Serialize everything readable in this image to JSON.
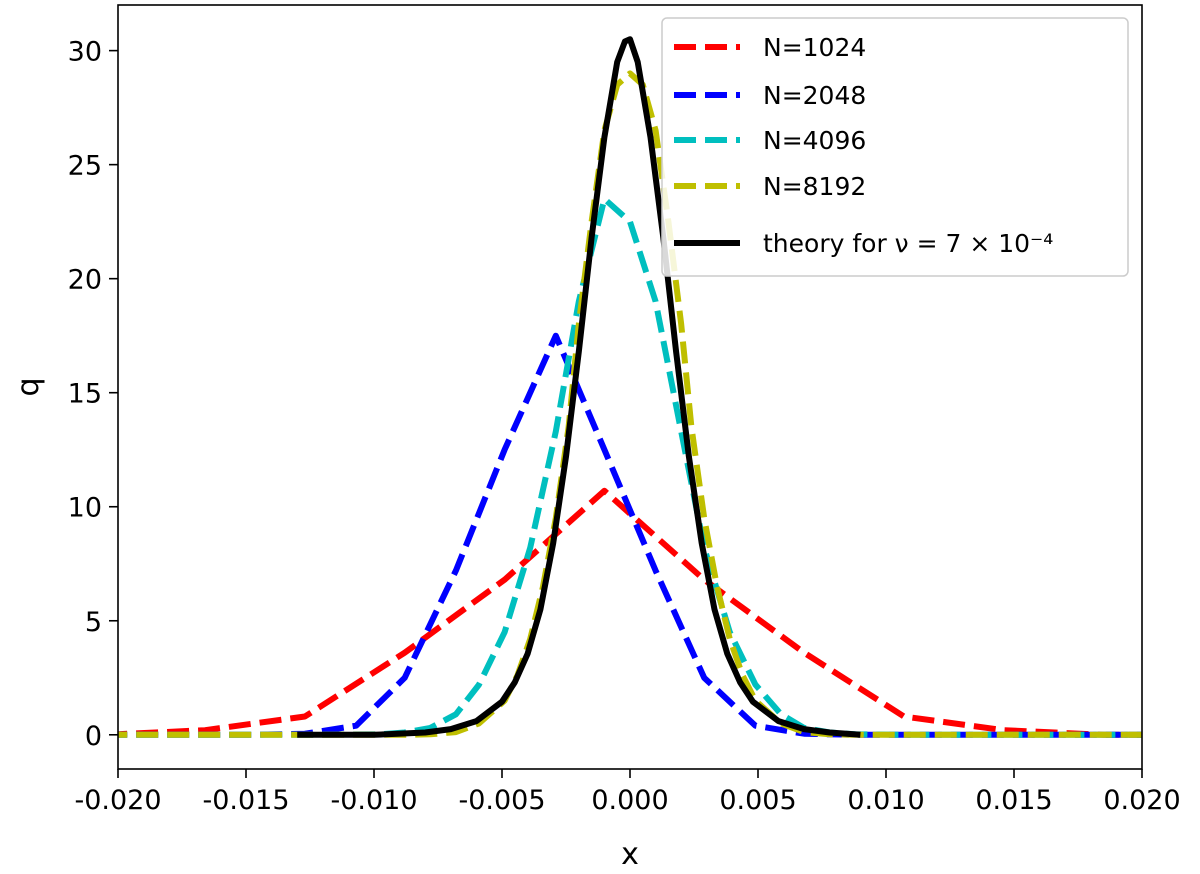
{
  "chart_data": {
    "type": "line",
    "title": "",
    "xlabel": "x",
    "ylabel": "q",
    "xlim": [
      -0.02,
      0.02
    ],
    "ylim": [
      -1.5,
      32
    ],
    "xticks": [
      -0.02,
      -0.015,
      -0.01,
      -0.005,
      0.0,
      0.005,
      0.01,
      0.015,
      0.02
    ],
    "xtick_labels": [
      "-0.020",
      "-0.015",
      "-0.010",
      "-0.005",
      "0.000",
      "0.005",
      "0.010",
      "0.015",
      "0.020"
    ],
    "yticks": [
      0,
      5,
      10,
      15,
      20,
      25,
      30
    ],
    "ytick_labels": [
      "0",
      "5",
      "10",
      "15",
      "20",
      "25",
      "30"
    ],
    "grid": false,
    "legend_position": "top-right",
    "series": [
      {
        "name": "N=1024",
        "color": "#ff0000",
        "style": "dashed",
        "x": [
          -0.0205,
          -0.0166,
          -0.0127,
          -0.0088,
          -0.0049,
          -0.001,
          0.0029,
          0.0068,
          0.0107,
          0.0146,
          0.0185,
          0.0205
        ],
        "y": [
          0.0,
          0.2,
          0.8,
          3.6,
          6.8,
          10.7,
          6.8,
          3.6,
          0.8,
          0.2,
          0.0,
          0.0
        ]
      },
      {
        "name": "N=2048",
        "color": "#0000ff",
        "style": "dashed",
        "x": [
          -0.0205,
          -0.0186,
          -0.0166,
          -0.0147,
          -0.0127,
          -0.0107,
          -0.0088,
          -0.0068,
          -0.0049,
          -0.0029,
          -0.001,
          0.001,
          0.0029,
          0.0049,
          0.0068,
          0.0088,
          0.0107,
          0.0127,
          0.0147,
          0.0166,
          0.0186,
          0.0205
        ],
        "y": [
          0.0,
          0.0,
          0.0,
          0.0,
          0.05,
          0.4,
          2.5,
          7.2,
          12.5,
          17.5,
          12.5,
          7.2,
          2.5,
          0.4,
          0.05,
          0.0,
          0.0,
          0.0,
          0.0,
          0.0,
          0.0,
          0.0
        ]
      },
      {
        "name": "N=4096",
        "color": "#00bfbf",
        "style": "dashed",
        "x": [
          -0.0205,
          -0.0166,
          -0.0127,
          -0.0098,
          -0.0088,
          -0.0078,
          -0.0068,
          -0.0059,
          -0.0049,
          -0.0039,
          -0.0029,
          -0.002,
          -0.001,
          0.0,
          0.001,
          0.002,
          0.0029,
          0.0039,
          0.0049,
          0.0059,
          0.0068,
          0.0078,
          0.0088,
          0.0107,
          0.0146,
          0.0205
        ],
        "y": [
          0.0,
          0.0,
          0.0,
          0.02,
          0.1,
          0.3,
          0.9,
          2.2,
          4.5,
          8.2,
          13.3,
          19.0,
          23.5,
          22.5,
          19.0,
          13.3,
          8.2,
          4.5,
          2.2,
          0.9,
          0.3,
          0.1,
          0.02,
          0.0,
          0.0,
          0.0
        ]
      },
      {
        "name": "N=8192",
        "color": "#bfbf00",
        "style": "dashed",
        "x": [
          -0.0205,
          -0.0127,
          -0.0088,
          -0.0078,
          -0.0068,
          -0.0059,
          -0.0049,
          -0.0044,
          -0.0039,
          -0.0034,
          -0.0029,
          -0.0024,
          -0.002,
          -0.0015,
          -0.001,
          -0.0005,
          0.0,
          0.0005,
          0.001,
          0.0015,
          0.002,
          0.0024,
          0.0029,
          0.0034,
          0.0039,
          0.0044,
          0.0049,
          0.0059,
          0.0068,
          0.0078,
          0.0088,
          0.0127,
          0.0205
        ],
        "y": [
          0.0,
          0.0,
          0.0,
          0.02,
          0.12,
          0.5,
          1.5,
          2.6,
          4.2,
          6.5,
          9.5,
          13.5,
          18.0,
          22.5,
          26.5,
          28.5,
          29.0,
          28.5,
          26.5,
          22.5,
          18.0,
          13.5,
          9.5,
          6.5,
          4.2,
          2.6,
          1.5,
          0.5,
          0.12,
          0.02,
          0.0,
          0.0,
          0.0
        ]
      },
      {
        "name": "theory for ν = 7 × 10⁻⁴",
        "color": "#000000",
        "style": "solid",
        "x": [
          -0.013,
          -0.01,
          -0.008,
          -0.007,
          -0.006,
          -0.005,
          -0.0045,
          -0.004,
          -0.0035,
          -0.003,
          -0.0025,
          -0.002,
          -0.0015,
          -0.001,
          -0.0005,
          -0.0002,
          0.0,
          0.0003,
          0.0008,
          0.0013,
          0.0018,
          0.0023,
          0.0028,
          0.0033,
          0.0038,
          0.0043,
          0.0048,
          0.0058,
          0.0068,
          0.0078,
          0.009
        ],
        "y": [
          0.0,
          0.0,
          0.1,
          0.25,
          0.6,
          1.45,
          2.3,
          3.55,
          5.5,
          8.4,
          12.2,
          16.8,
          21.8,
          26.2,
          29.5,
          30.4,
          30.5,
          29.5,
          26.2,
          21.8,
          16.8,
          12.2,
          8.4,
          5.5,
          3.55,
          2.3,
          1.45,
          0.6,
          0.25,
          0.1,
          0.0
        ]
      }
    ]
  }
}
